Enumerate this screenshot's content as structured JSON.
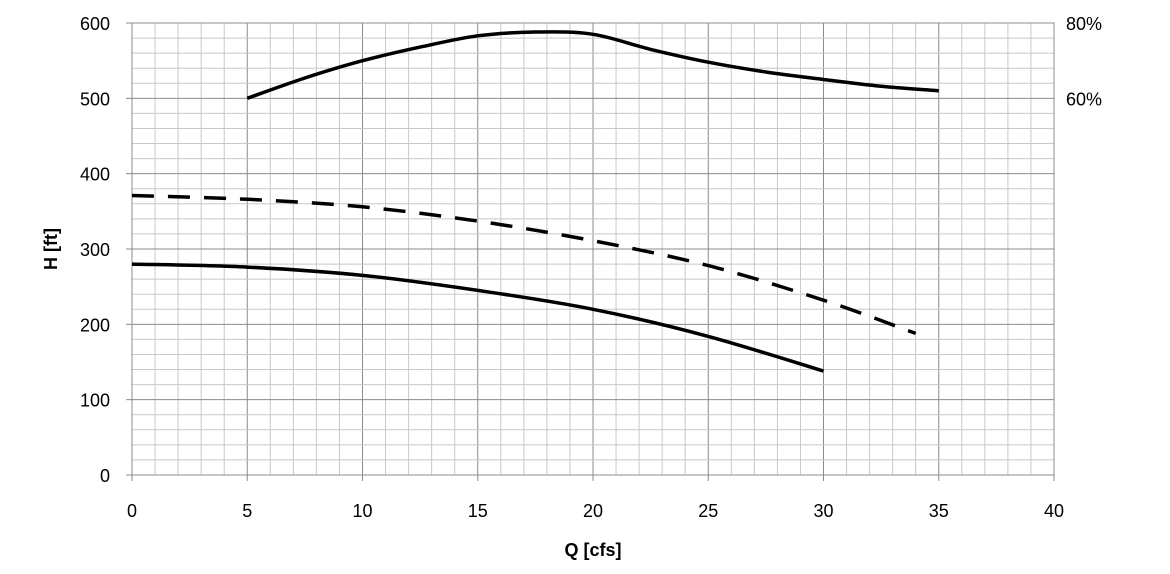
{
  "chart_data": {
    "type": "line",
    "xlabel": "Q [cfs]",
    "ylabel": "H [ft]",
    "xlim": [
      0,
      40
    ],
    "ylim": [
      0,
      600
    ],
    "x_ticks": [
      "0",
      "5",
      "10",
      "15",
      "20",
      "25",
      "30",
      "35",
      "40"
    ],
    "y_ticks": [
      "0",
      "100",
      "200",
      "300",
      "400",
      "500",
      "600"
    ],
    "y2_ticks": [
      "60%",
      "80%"
    ],
    "grid": true,
    "series": [
      {
        "axis": "secondary",
        "style": "solid",
        "x": [
          5,
          7.5,
          10,
          12.5,
          15,
          17.5,
          20,
          22.5,
          25,
          27.5,
          30,
          32.5,
          35
        ],
        "y": [
          500,
          527,
          550,
          568,
          583,
          588,
          585,
          565,
          548,
          535,
          525,
          516,
          510
        ]
      },
      {
        "axis": "primary",
        "style": "dashed",
        "x": [
          0,
          5,
          10,
          15,
          20,
          25,
          30,
          34
        ],
        "y": [
          371,
          366,
          356,
          337,
          311,
          278,
          232,
          188
        ]
      },
      {
        "axis": "primary",
        "style": "solid",
        "x": [
          0,
          5,
          10,
          15,
          20,
          25,
          30
        ],
        "y": [
          280,
          276,
          265,
          245,
          220,
          184,
          138
        ]
      }
    ]
  }
}
